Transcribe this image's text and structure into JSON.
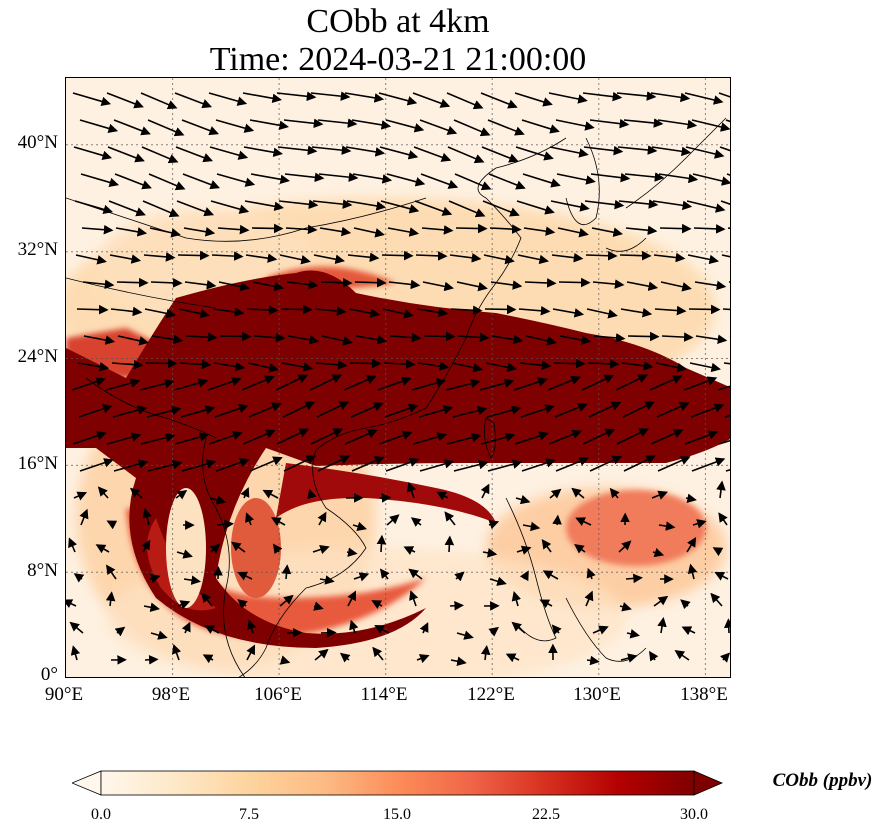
{
  "title": {
    "line1": "CObb at 4km",
    "line2": "Time: 2024-03-21 21:00:00"
  },
  "map": {
    "lon_range": [
      90,
      140
    ],
    "lat_range": [
      0,
      45
    ],
    "lon_ticks": [
      "90°E",
      "98°E",
      "106°E",
      "114°E",
      "122°E",
      "130°E",
      "138°E"
    ],
    "lat_ticks": [
      "0°",
      "8°N",
      "16°N",
      "24°N",
      "32°N",
      "40°N"
    ],
    "gridlines": "dotted",
    "variable": "CObb",
    "vectors": "wind arrows"
  },
  "colorbar": {
    "label": "CObb (ppbv)",
    "ticks": [
      "0.0",
      "7.5",
      "15.0",
      "22.5",
      "30.0"
    ],
    "range": [
      0,
      30
    ],
    "extend": "both",
    "colormap": [
      "#fff7ec",
      "#fee8c8",
      "#fdd49e",
      "#fdbb84",
      "#fc8d59",
      "#ef6548",
      "#d7301f",
      "#b30000",
      "#7f0000"
    ]
  }
}
